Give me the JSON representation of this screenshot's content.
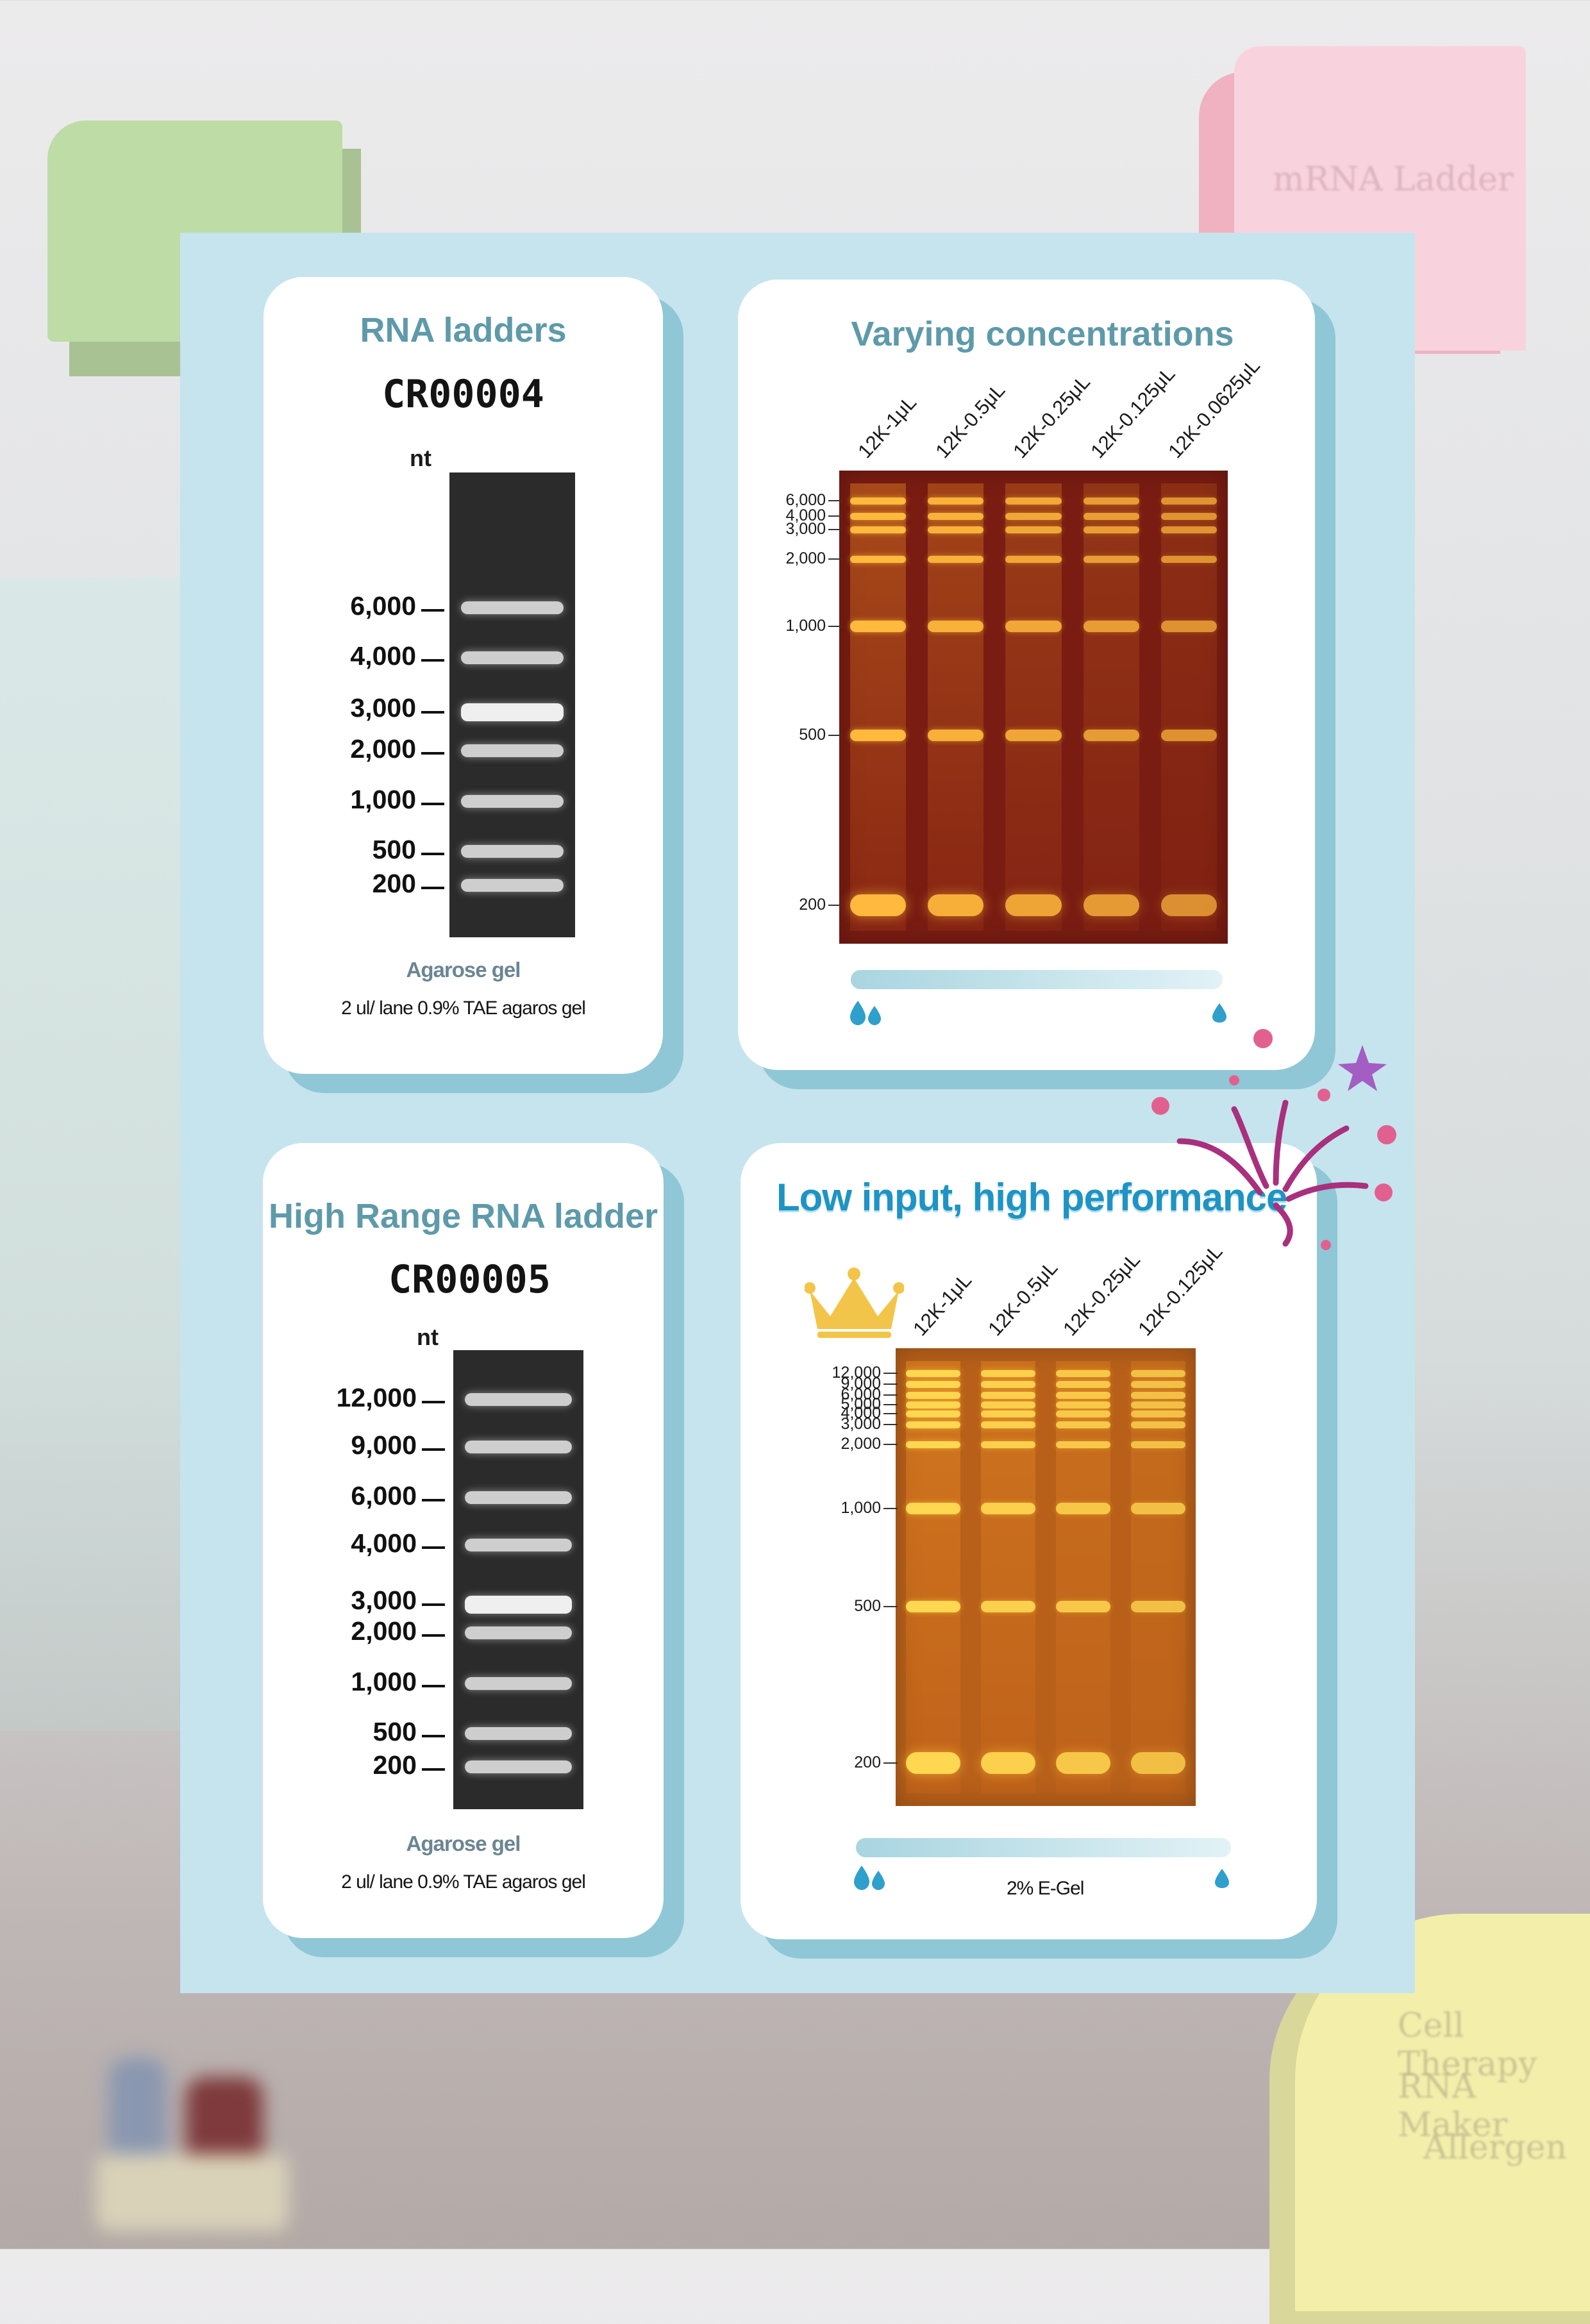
{
  "background_notes": {
    "pink_tab": "mRNA Ladder",
    "yellow_note": [
      "Cell Therapy",
      "RNA Maker",
      "Allergen"
    ]
  },
  "panel_top_left": {
    "title": "RNA ladders",
    "code": "CR00004",
    "unit": "nt",
    "markers": [
      "6,000",
      "4,000",
      "3,000",
      "2,000",
      "1,000",
      "500",
      "200"
    ],
    "caption_bold": "Agarose gel",
    "caption": "2 ul/ lane 0.9% TAE agaros gel"
  },
  "panel_top_right": {
    "title": "Varying concentrations",
    "lanes": [
      "12K-1μL",
      "12K-0.5μL",
      "12K-0.25μL",
      "12K-0.125μL",
      "12K-0.0625μL"
    ],
    "markers": [
      "6,000",
      "4,000",
      "3,000",
      "2,000",
      "1,000",
      "500",
      "200"
    ],
    "lane_intensity": [
      1.0,
      0.85,
      0.7,
      0.55,
      0.4
    ],
    "drop_left": "two-drops-icon",
    "drop_right": "drop-icon"
  },
  "panel_bottom_left": {
    "title": "High Range RNA ladder",
    "code": "CR00005",
    "unit": "nt",
    "markers": [
      "12,000",
      "9,000",
      "6,000",
      "4,000",
      "3,000",
      "2,000",
      "1,000",
      "500",
      "200"
    ],
    "caption_bold": "Agarose gel",
    "caption": "2 ul/ lane 0.9% TAE agaros gel"
  },
  "panel_bottom_right": {
    "title": "Low input, high performance",
    "lanes": [
      "12K-1μL",
      "12K-0.5μL",
      "12K-0.25μL",
      "12K-0.125μL"
    ],
    "markers": [
      "12,000",
      "9,000",
      "6,000",
      "5,000",
      "4,000",
      "3,000",
      "2,000",
      "1,000",
      "500",
      "200"
    ],
    "lane_intensity": [
      1.0,
      0.85,
      0.7,
      0.55
    ],
    "gel_label": "2% E-Gel",
    "drop_left": "two-drops-icon",
    "drop_right": "drop-icon",
    "icon": "crown-icon"
  },
  "colors": {
    "board": "#c6e4ed",
    "title": "#5e9aaa",
    "accent": "#1f93c4",
    "gel_red": "#7a1c12",
    "gel_orange": "#b8601a",
    "band_warm": "#ffcf4a"
  }
}
